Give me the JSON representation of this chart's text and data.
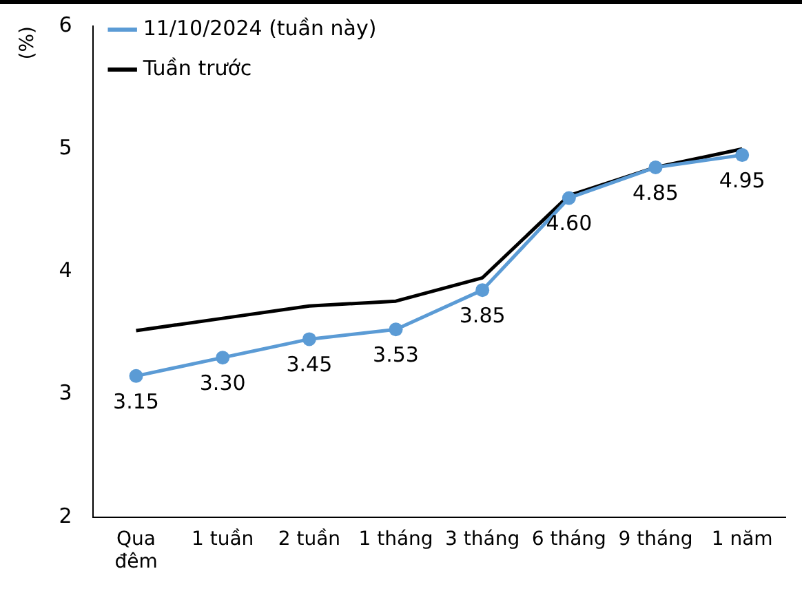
{
  "chart_data": {
    "type": "line",
    "ylabel": "(%)",
    "categories": [
      "Qua đêm",
      "1 tuần",
      "2 tuần",
      "1 tháng",
      "3 tháng",
      "6 tháng",
      "9 tháng",
      "1 năm"
    ],
    "series": [
      {
        "name": "11/10/2024 (tuần này)",
        "color": "#5b9bd5",
        "marker": "circle",
        "values": [
          3.15,
          3.3,
          3.45,
          3.53,
          3.85,
          4.6,
          4.85,
          4.95
        ],
        "value_labels": [
          "3.15",
          "3.30",
          "3.45",
          "3.53",
          "3.85",
          "4.60",
          "4.85",
          "4.95"
        ]
      },
      {
        "name": "Tuần trước",
        "color": "#000000",
        "marker": "none",
        "values": [
          3.52,
          3.62,
          3.72,
          3.76,
          3.95,
          4.62,
          4.85,
          5.0
        ]
      }
    ],
    "ylim": [
      2,
      6
    ],
    "yticks": [
      2,
      3,
      4,
      5,
      6
    ],
    "grid": false,
    "legend": "top left",
    "line_style": "solid"
  }
}
